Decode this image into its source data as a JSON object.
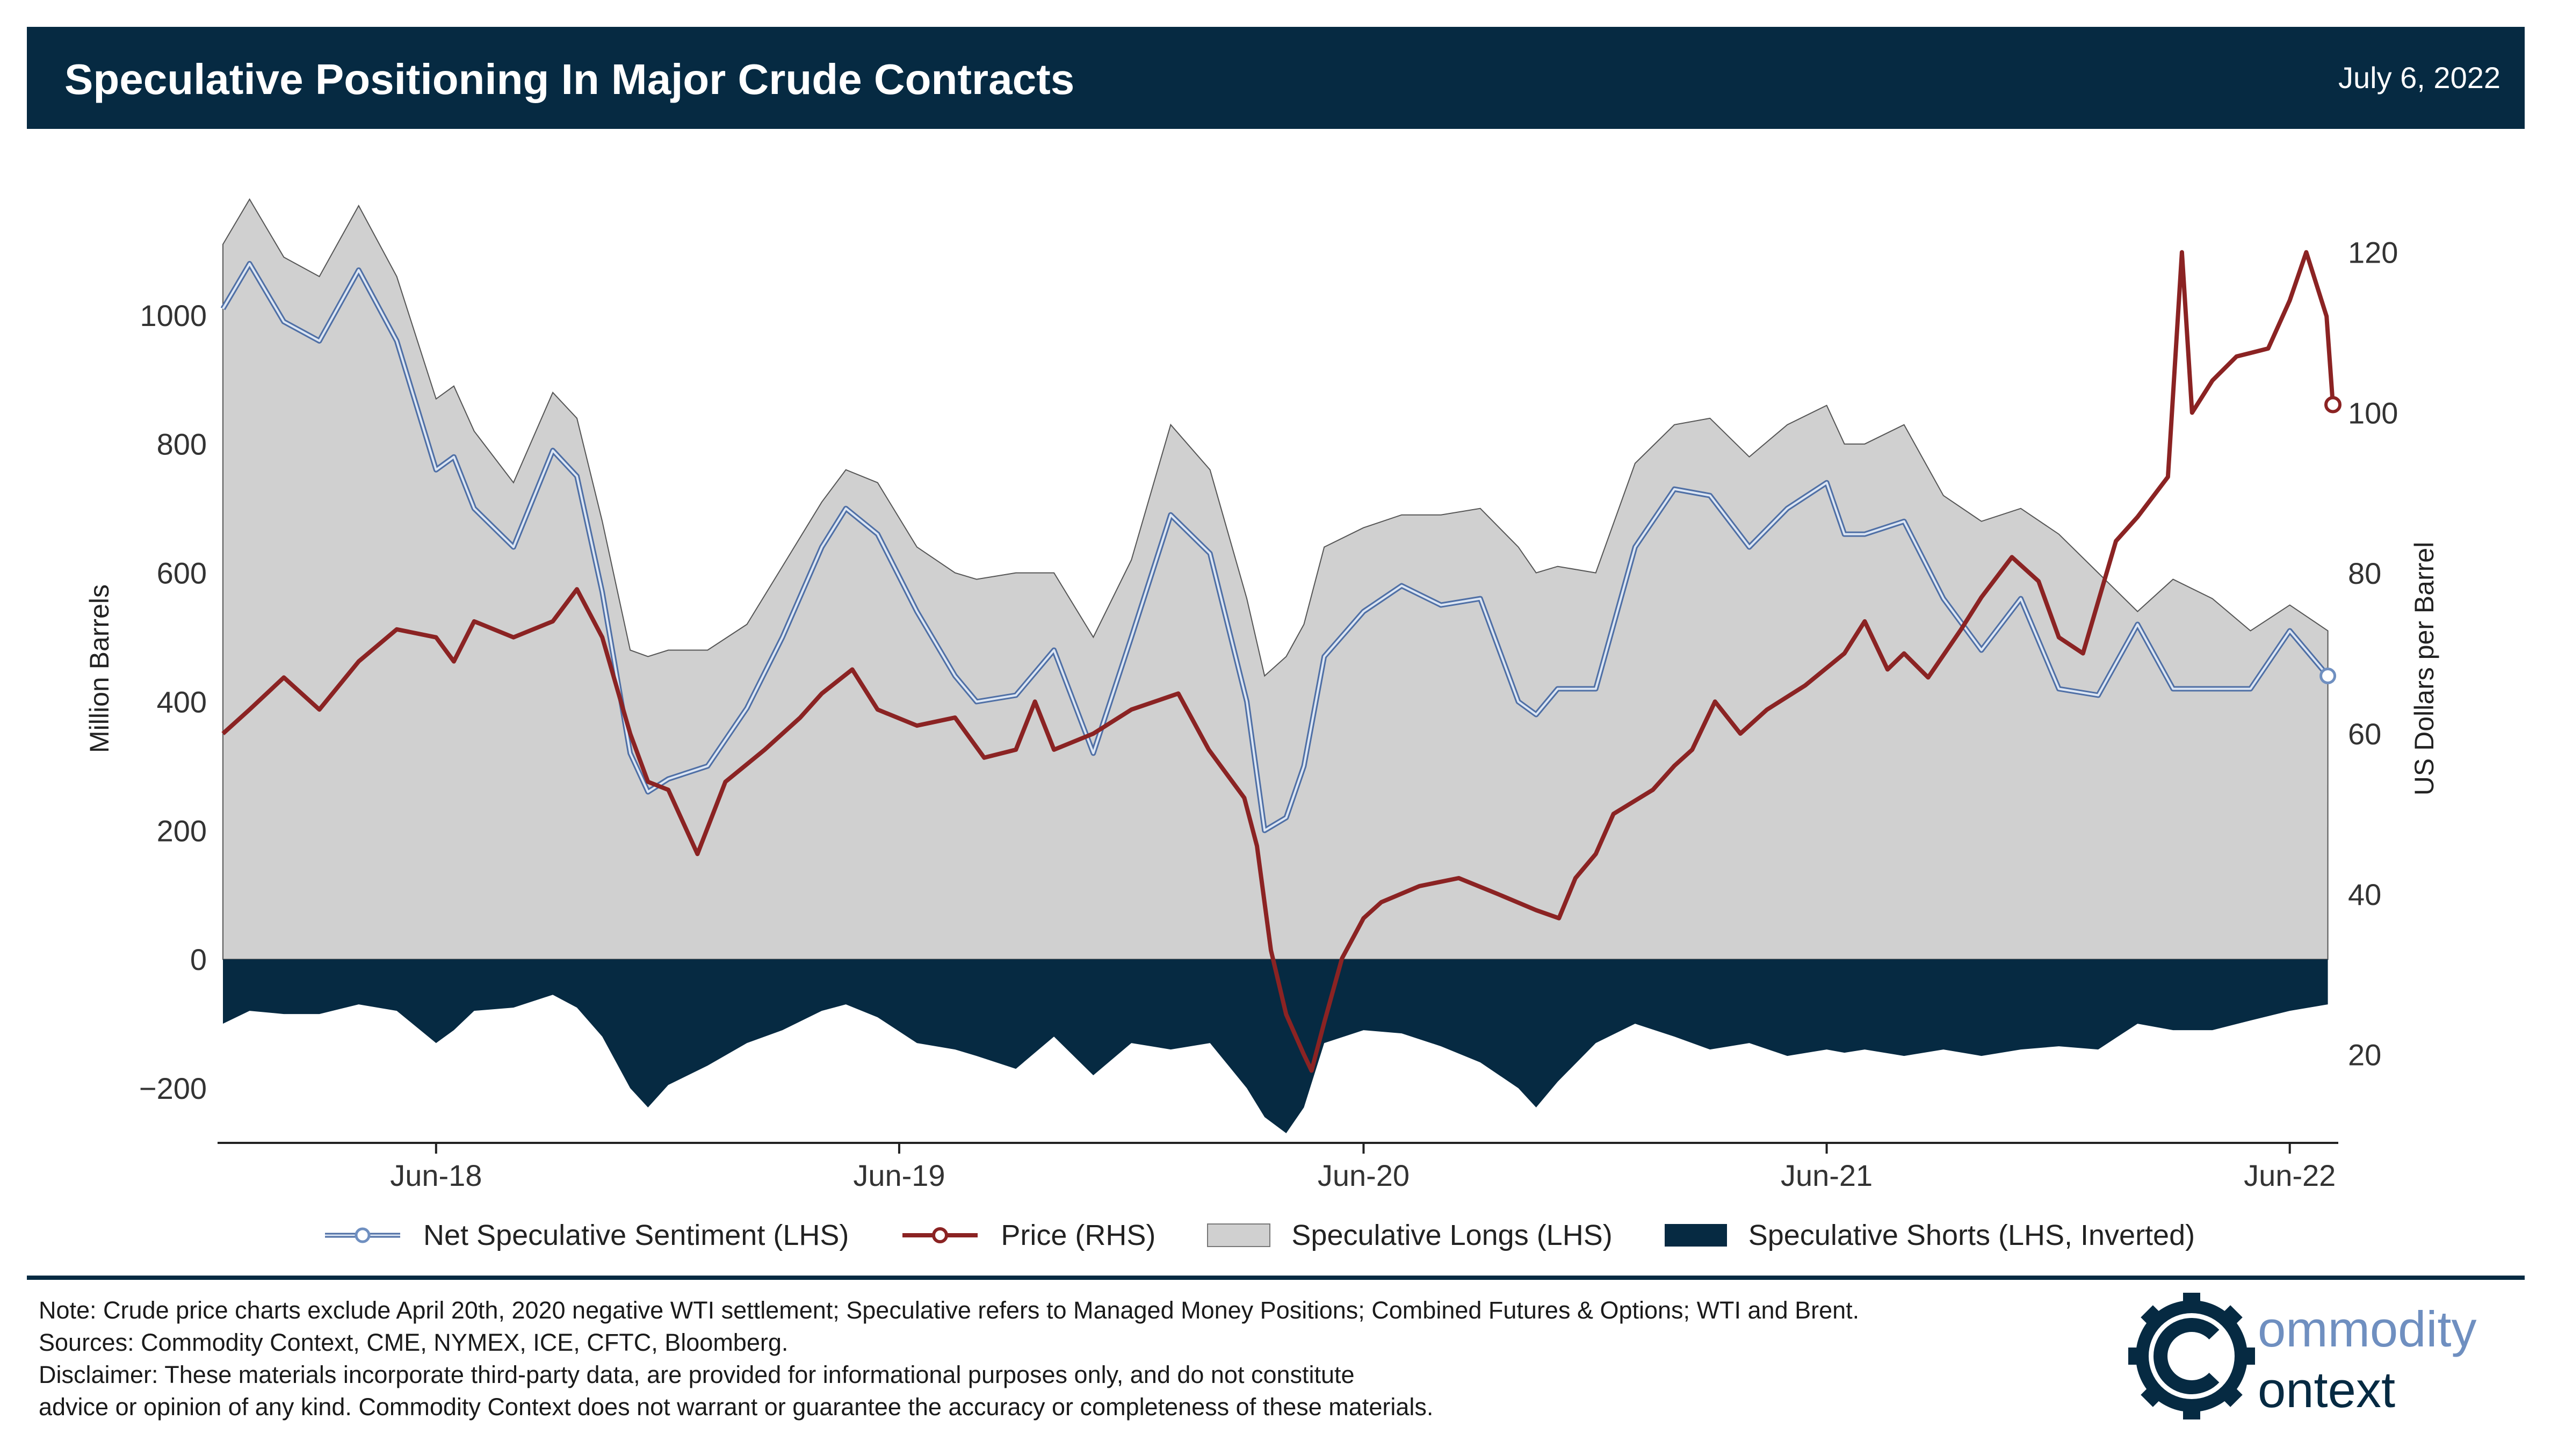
{
  "header": {
    "title": "Speculative Positioning In Major Crude Contracts",
    "date": "July 6, 2022"
  },
  "colors": {
    "header_bg": "#062a42",
    "longs_fill": "#d0d0d0",
    "shorts_fill": "#062a42",
    "net_line": "#6f8fc0",
    "price_line": "#8b2323"
  },
  "chart_data": {
    "type": "area",
    "xlabel": "",
    "ylabel_left": "Million Barrels",
    "ylabel_right": "US Dollars per Barrel",
    "x_ticks": [
      "Jun-18",
      "Jun-19",
      "Jun-20",
      "Jun-21",
      "Jun-22"
    ],
    "x_range": [
      "2017-12-15",
      "2022-07-05"
    ],
    "y_left_ticks": [
      "1000",
      "800",
      "600",
      "400",
      "200",
      "0",
      "−200"
    ],
    "y_left_range": [
      -285,
      1185
    ],
    "y_right_ticks": [
      "120",
      "100",
      "80",
      "60",
      "40",
      "20"
    ],
    "y_right_range": [
      9,
      127
    ],
    "grid": false,
    "legend_position": "bottom",
    "series": [
      {
        "name": "Speculative Longs (LHS)",
        "axis": "left",
        "x": [
          "2017-12-15",
          "2018-01-05",
          "2018-02-01",
          "2018-03-01",
          "2018-04-01",
          "2018-05-01",
          "2018-06-01",
          "2018-06-15",
          "2018-07-01",
          "2018-08-01",
          "2018-09-01",
          "2018-09-20",
          "2018-10-10",
          "2018-11-01",
          "2018-11-15",
          "2018-12-01",
          "2019-01-01",
          "2019-02-01",
          "2019-03-01",
          "2019-04-01",
          "2019-04-20",
          "2019-05-15",
          "2019-06-15",
          "2019-07-15",
          "2019-08-01",
          "2019-09-01",
          "2019-10-01",
          "2019-11-01",
          "2019-12-01",
          "2020-01-01",
          "2020-02-01",
          "2020-03-01",
          "2020-03-15",
          "2020-04-01",
          "2020-04-15",
          "2020-05-01",
          "2020-06-01",
          "2020-07-01",
          "2020-08-01",
          "2020-09-01",
          "2020-10-01",
          "2020-10-15",
          "2020-11-01",
          "2020-12-01",
          "2021-01-01",
          "2021-02-01",
          "2021-03-01",
          "2021-04-01",
          "2021-05-01",
          "2021-06-01",
          "2021-06-15",
          "2021-07-01",
          "2021-08-01",
          "2021-09-01",
          "2021-10-01",
          "2021-11-01",
          "2021-12-01",
          "2022-01-01",
          "2022-02-01",
          "2022-03-01",
          "2022-04-01",
          "2022-05-01",
          "2022-06-01",
          "2022-07-01"
        ],
        "values": [
          1110,
          1180,
          1090,
          1060,
          1170,
          1060,
          870,
          890,
          820,
          740,
          880,
          840,
          680,
          480,
          470,
          480,
          480,
          520,
          610,
          710,
          760,
          740,
          640,
          600,
          590,
          600,
          600,
          500,
          620,
          830,
          760,
          560,
          440,
          470,
          520,
          640,
          670,
          690,
          690,
          700,
          640,
          600,
          610,
          600,
          770,
          830,
          840,
          780,
          830,
          860,
          800,
          800,
          830,
          720,
          680,
          700,
          660,
          600,
          540,
          590,
          560,
          510,
          550,
          510
        ]
      },
      {
        "name": "Net Speculative Sentiment (LHS)",
        "axis": "left",
        "x": [
          "2017-12-15",
          "2018-01-05",
          "2018-02-01",
          "2018-03-01",
          "2018-04-01",
          "2018-05-01",
          "2018-06-01",
          "2018-06-15",
          "2018-07-01",
          "2018-08-01",
          "2018-09-01",
          "2018-09-20",
          "2018-10-10",
          "2018-11-01",
          "2018-11-15",
          "2018-12-01",
          "2019-01-01",
          "2019-02-01",
          "2019-03-01",
          "2019-04-01",
          "2019-04-20",
          "2019-05-15",
          "2019-06-15",
          "2019-07-15",
          "2019-08-01",
          "2019-09-01",
          "2019-10-01",
          "2019-11-01",
          "2019-12-01",
          "2020-01-01",
          "2020-02-01",
          "2020-03-01",
          "2020-03-15",
          "2020-04-01",
          "2020-04-15",
          "2020-05-01",
          "2020-06-01",
          "2020-07-01",
          "2020-08-01",
          "2020-09-01",
          "2020-10-01",
          "2020-10-15",
          "2020-11-01",
          "2020-12-01",
          "2021-01-01",
          "2021-02-01",
          "2021-03-01",
          "2021-04-01",
          "2021-05-01",
          "2021-06-01",
          "2021-06-15",
          "2021-07-01",
          "2021-08-01",
          "2021-09-01",
          "2021-10-01",
          "2021-11-01",
          "2021-12-01",
          "2022-01-01",
          "2022-02-01",
          "2022-03-01",
          "2022-04-01",
          "2022-05-01",
          "2022-06-01",
          "2022-07-01"
        ],
        "values": [
          1010,
          1080,
          990,
          960,
          1070,
          960,
          760,
          780,
          700,
          640,
          790,
          750,
          570,
          320,
          260,
          280,
          300,
          390,
          500,
          640,
          700,
          660,
          540,
          440,
          400,
          410,
          480,
          320,
          500,
          690,
          630,
          400,
          200,
          220,
          300,
          470,
          540,
          580,
          550,
          560,
          400,
          380,
          420,
          420,
          640,
          730,
          720,
          640,
          700,
          740,
          660,
          660,
          680,
          560,
          480,
          560,
          420,
          410,
          520,
          420,
          420,
          420,
          510,
          440
        ]
      },
      {
        "name": "Speculative Shorts (LHS, Inverted)",
        "axis": "left",
        "x": [
          "2017-12-15",
          "2018-01-05",
          "2018-02-01",
          "2018-03-01",
          "2018-04-01",
          "2018-05-01",
          "2018-06-01",
          "2018-06-15",
          "2018-07-01",
          "2018-08-01",
          "2018-09-01",
          "2018-09-20",
          "2018-10-10",
          "2018-11-01",
          "2018-11-15",
          "2018-12-01",
          "2019-01-01",
          "2019-02-01",
          "2019-03-01",
          "2019-04-01",
          "2019-04-20",
          "2019-05-15",
          "2019-06-15",
          "2019-07-15",
          "2019-08-01",
          "2019-09-01",
          "2019-10-01",
          "2019-11-01",
          "2019-12-01",
          "2020-01-01",
          "2020-02-01",
          "2020-03-01",
          "2020-03-15",
          "2020-04-01",
          "2020-04-15",
          "2020-05-01",
          "2020-06-01",
          "2020-07-01",
          "2020-08-01",
          "2020-09-01",
          "2020-10-01",
          "2020-10-15",
          "2020-11-01",
          "2020-12-01",
          "2021-01-01",
          "2021-02-01",
          "2021-03-01",
          "2021-04-01",
          "2021-05-01",
          "2021-06-01",
          "2021-06-15",
          "2021-07-01",
          "2021-08-01",
          "2021-09-01",
          "2021-10-01",
          "2021-11-01",
          "2021-12-01",
          "2022-01-01",
          "2022-02-01",
          "2022-03-01",
          "2022-04-01",
          "2022-05-01",
          "2022-06-01",
          "2022-07-01"
        ],
        "values": [
          -100,
          -80,
          -85,
          -85,
          -70,
          -80,
          -130,
          -110,
          -80,
          -75,
          -55,
          -75,
          -120,
          -200,
          -230,
          -195,
          -165,
          -130,
          -110,
          -80,
          -70,
          -90,
          -130,
          -140,
          -150,
          -170,
          -120,
          -180,
          -130,
          -140,
          -130,
          -200,
          -245,
          -270,
          -230,
          -130,
          -110,
          -115,
          -135,
          -160,
          -200,
          -230,
          -190,
          -130,
          -100,
          -120,
          -140,
          -130,
          -150,
          -140,
          -145,
          -140,
          -150,
          -140,
          -150,
          -140,
          -135,
          -140,
          -100,
          -110,
          -110,
          -95,
          -80,
          -70
        ]
      },
      {
        "name": "Price (RHS)",
        "axis": "right",
        "x": [
          "2017-12-15",
          "2018-01-05",
          "2018-02-01",
          "2018-03-01",
          "2018-04-01",
          "2018-05-01",
          "2018-06-01",
          "2018-06-15",
          "2018-07-01",
          "2018-08-01",
          "2018-09-01",
          "2018-09-20",
          "2018-10-10",
          "2018-11-01",
          "2018-11-15",
          "2018-12-01",
          "2018-12-24",
          "2019-01-15",
          "2019-02-15",
          "2019-03-15",
          "2019-04-01",
          "2019-04-25",
          "2019-05-15",
          "2019-06-15",
          "2019-07-15",
          "2019-08-07",
          "2019-09-01",
          "2019-09-16",
          "2019-10-01",
          "2019-11-01",
          "2019-12-01",
          "2020-01-07",
          "2020-01-31",
          "2020-02-28",
          "2020-03-09",
          "2020-03-20",
          "2020-04-01",
          "2020-04-15",
          "2020-04-21",
          "2020-05-01",
          "2020-05-15",
          "2020-06-01",
          "2020-06-15",
          "2020-07-15",
          "2020-08-15",
          "2020-09-15",
          "2020-10-15",
          "2020-11-02",
          "2020-11-15",
          "2020-12-01",
          "2020-12-15",
          "2021-01-15",
          "2021-02-01",
          "2021-02-15",
          "2021-03-05",
          "2021-03-25",
          "2021-04-15",
          "2021-05-15",
          "2021-06-15",
          "2021-07-01",
          "2021-07-19",
          "2021-08-01",
          "2021-08-20",
          "2021-09-15",
          "2021-10-01",
          "2021-10-25",
          "2021-11-15",
          "2021-12-01",
          "2021-12-20",
          "2022-01-15",
          "2022-02-01",
          "2022-02-25",
          "2022-03-08",
          "2022-03-16",
          "2022-04-01",
          "2022-04-20",
          "2022-05-15",
          "2022-06-01",
          "2022-06-14",
          "2022-06-30",
          "2022-07-05"
        ],
        "values": [
          60,
          63,
          67,
          63,
          69,
          73,
          72,
          69,
          74,
          72,
          74,
          78,
          72,
          60,
          54,
          53,
          45,
          54,
          58,
          62,
          65,
          68,
          63,
          61,
          62,
          57,
          58,
          64,
          58,
          60,
          63,
          65,
          58,
          52,
          46,
          33,
          25,
          20,
          18,
          24,
          32,
          37,
          39,
          41,
          42,
          40,
          38,
          37,
          42,
          45,
          50,
          53,
          56,
          58,
          64,
          60,
          63,
          66,
          70,
          74,
          68,
          70,
          67,
          73,
          77,
          82,
          79,
          72,
          70,
          84,
          87,
          92,
          120,
          100,
          104,
          107,
          108,
          114,
          120,
          112,
          101
        ]
      }
    ]
  },
  "legend": [
    {
      "label": "Net Speculative Sentiment (LHS)"
    },
    {
      "label": "Price (RHS)"
    },
    {
      "label": "Speculative Longs (LHS)"
    },
    {
      "label": "Speculative Shorts (LHS, Inverted)"
    }
  ],
  "footer": {
    "note": "Note: Crude price charts exclude April 20th, 2020 negative WTI settlement; Speculative refers to Managed Money Positions; Combined Futures & Options; WTI and Brent.",
    "sources": "Sources: Commodity Context, CME, NYMEX, ICE, CFTC, Bloomberg.",
    "disclaimer_1": "Disclaimer: These materials incorporate third-party data, are provided for informational purposes only, and do not constitute",
    "disclaimer_2": "advice or opinion of any kind. Commodity Context does not warrant or guarantee the accuracy or completeness of these materials."
  },
  "logo": {
    "line1": "ommodity",
    "line2": "ontext",
    "icon": "gear-c-icon"
  }
}
